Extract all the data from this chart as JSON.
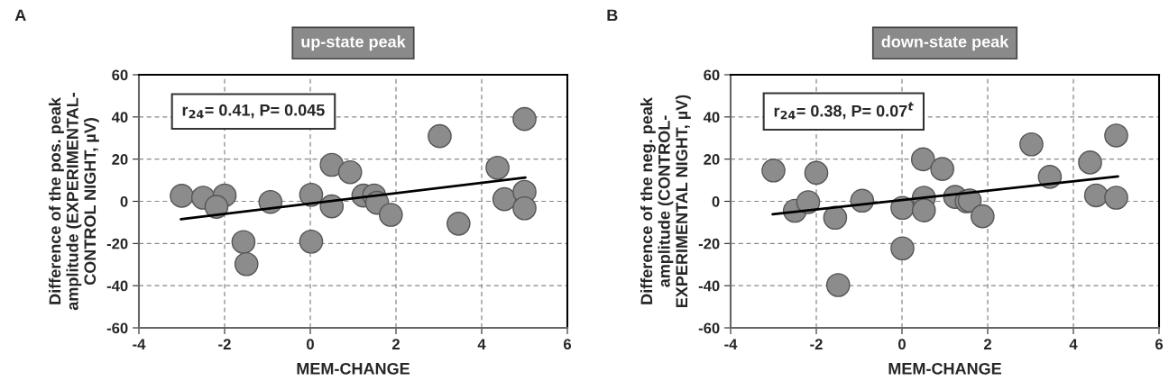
{
  "chart_data": [
    {
      "type": "scatter",
      "title": "up-state peak",
      "xlabel": "MEM-CHANGE",
      "ylabel": "Difference of the pos. peak\namplitude (EXPERIMENTAL-\nCONTROL NIGHT, µV)",
      "annotations": [
        "A",
        "r$_{24}$= 0.41, P= 0.045"
      ],
      "xlim": [
        -4,
        6
      ],
      "xticks": [
        -4,
        -2,
        0,
        2,
        4,
        6
      ],
      "ylim": [
        -60,
        60
      ],
      "yticks": [
        -60,
        -40,
        -20,
        0,
        20,
        40,
        60
      ],
      "grid": true,
      "series": [
        {
          "marker": "circle",
          "color": "#8c8c8c",
          "x": [
            -3.0,
            -2.5,
            -2.0,
            -2.19,
            -1.56,
            -1.49,
            -0.93,
            0.02,
            0.02,
            0.5,
            0.5,
            0.93,
            1.24,
            1.49,
            1.56,
            1.88,
            3.02,
            3.46,
            4.37,
            4.53,
            5.0,
            5.0,
            5.0
          ],
          "values": [
            2.6,
            1.7,
            2.8,
            -2.6,
            -19.3,
            -29.8,
            -0.3,
            3.1,
            -19.1,
            17.3,
            -2.4,
            13.8,
            2.7,
            2.8,
            -0.7,
            -6.4,
            30.9,
            -10.6,
            15.9,
            1.0,
            4.5,
            -3.3,
            39.0
          ]
        },
        {
          "type": "line",
          "marker": "none",
          "color": "#000000",
          "x": [
            -3.02,
            5.02
          ],
          "values": [
            -8.5,
            11.3
          ]
        }
      ]
    },
    {
      "type": "scatter",
      "title": "down-state peak",
      "xlabel": "MEM-CHANGE",
      "ylabel": "Difference of the neg. peak\namplitude (CONTROL-\nEXPERIMENTAL NIGHT, µV)",
      "annotations": [
        "B",
        "r$_{24}$= 0.38, P= 0.07$^{t}$"
      ],
      "xlim": [
        -4,
        6
      ],
      "xticks": [
        -4,
        -2,
        0,
        2,
        4,
        6
      ],
      "ylim": [
        -60,
        60
      ],
      "yticks": [
        -60,
        -40,
        -20,
        0,
        20,
        40,
        60
      ],
      "grid": true,
      "series": [
        {
          "marker": "circle",
          "color": "#8c8c8c",
          "x": [
            -3.0,
            -2.5,
            -2.19,
            -2.0,
            -1.56,
            -1.49,
            -0.93,
            0.01,
            0.01,
            0.49,
            0.51,
            0.51,
            0.94,
            1.24,
            1.51,
            1.58,
            1.88,
            3.02,
            3.45,
            4.39,
            4.53,
            5.0,
            5.0
          ],
          "values": [
            14.6,
            -4.5,
            -0.4,
            13.5,
            -7.8,
            -39.7,
            0.3,
            -3.1,
            -22.3,
            19.9,
            1.7,
            -4.3,
            15.3,
            2.1,
            0.0,
            0.4,
            -7.1,
            27.0,
            11.6,
            18.4,
            2.8,
            1.7,
            31.2
          ]
        },
        {
          "type": "line",
          "marker": "none",
          "color": "#000000",
          "x": [
            -3.02,
            5.04
          ],
          "values": [
            -6.1,
            11.8
          ]
        }
      ]
    }
  ]
}
